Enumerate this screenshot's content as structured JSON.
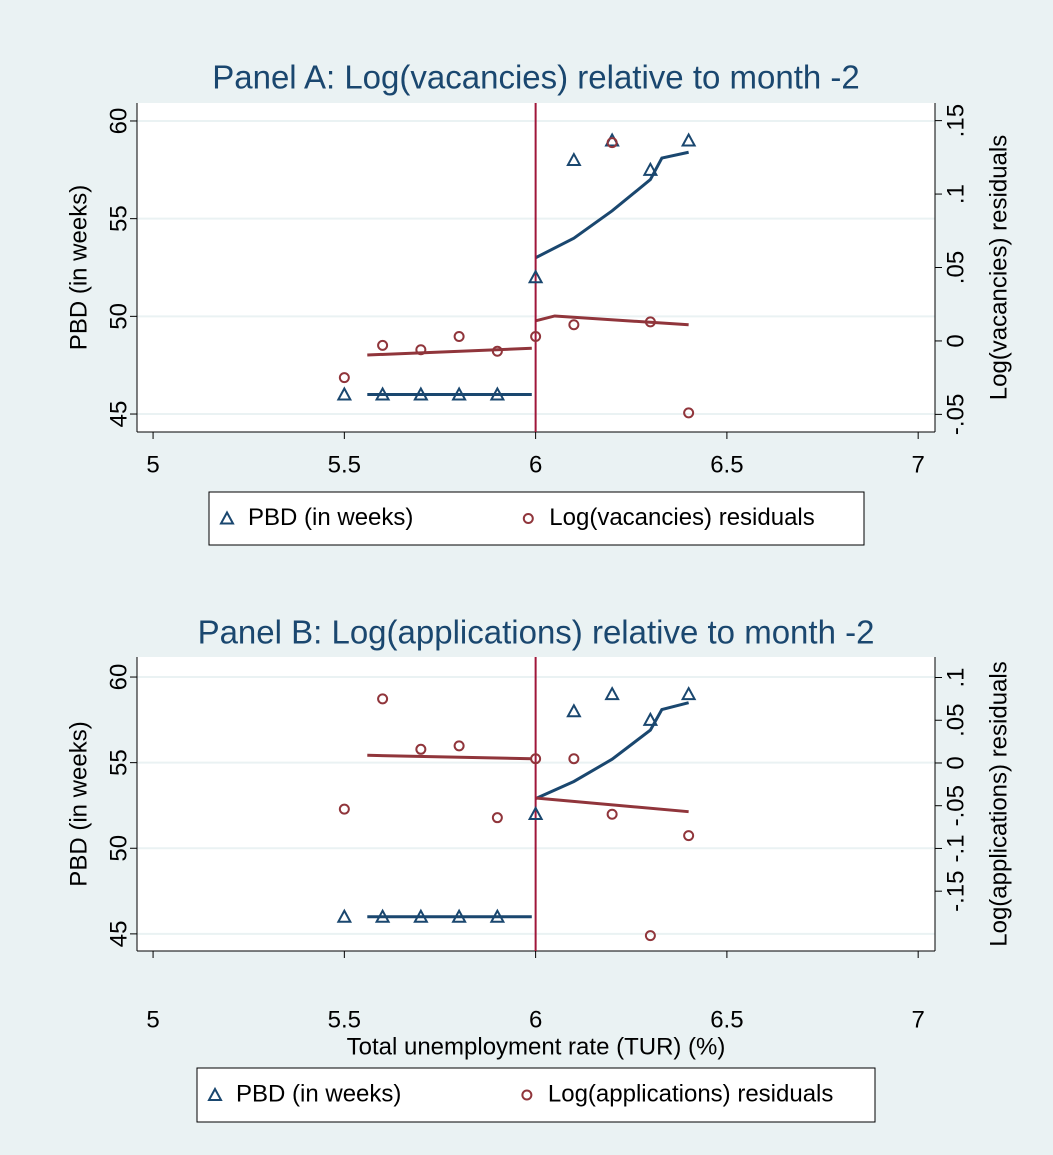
{
  "chart_data": [
    {
      "type": "scatter",
      "title": "Panel A: Log(vacancies) relative to month -2",
      "ylabel": "PBD (in weeks)",
      "y2label": "Log(vacancies) residuals",
      "xlim": [
        4.958,
        7.044
      ],
      "xticks": [
        5,
        5.5,
        6,
        6.5,
        7
      ],
      "ylim": [
        44.08,
        60.92
      ],
      "yticks": [
        45,
        50,
        55,
        60
      ],
      "y2lim": [
        -0.062,
        0.162
      ],
      "y2ticks": [
        {
          "value": -0.05,
          "label": "-.05"
        },
        0,
        {
          "value": 0.05,
          "label": ".05"
        },
        {
          "value": 0.1,
          "label": ".1"
        },
        {
          "value": 0.15,
          "label": ".15"
        }
      ],
      "vline": 6,
      "vline_color": "#a0173a",
      "grid": true,
      "legend": "bottom",
      "series": [
        {
          "name": "PBD (in weeks)",
          "color": "#1a476f",
          "marker": "triangle",
          "x": [
            5.5,
            5.6,
            5.7,
            5.8,
            5.9,
            6,
            6.1,
            6.2,
            6.3,
            6.4
          ],
          "values": [
            46,
            46,
            46,
            46,
            46,
            52,
            58,
            59,
            57.5,
            59
          ]
        },
        {
          "name": "Log(vacancies) residuals",
          "color": "#90353b",
          "marker": "circle",
          "axis": "y2",
          "x": [
            5.5,
            5.6,
            5.7,
            5.8,
            5.9,
            6,
            6.1,
            6.2,
            6.3,
            6.4
          ],
          "values": [
            -0.025,
            -0.003,
            -0.006,
            0.003,
            -0.007,
            0.003,
            0.011,
            0.135,
            0.013,
            -0.049
          ]
        },
        {
          "color": "#1a476f",
          "marker": "line",
          "x": [
            5.56,
            5.99
          ],
          "values": [
            46,
            46
          ]
        },
        {
          "color": "#1a476f",
          "marker": "line",
          "x": [
            6,
            6.1,
            6.2,
            6.3,
            6.33,
            6.4
          ],
          "values": [
            53,
            54,
            55.4,
            57,
            58.1,
            58.4
          ]
        },
        {
          "color": "#90353b",
          "marker": "line",
          "axis": "y2",
          "x": [
            5.56,
            5.99
          ],
          "values": [
            -0.0096,
            -0.005
          ]
        },
        {
          "color": "#90353b",
          "marker": "line",
          "axis": "y2",
          "x": [
            6,
            6.05,
            6.4
          ],
          "values": [
            0.0137,
            0.017,
            0.011
          ]
        }
      ]
    },
    {
      "type": "scatter",
      "title": "Panel B: Log(applications) relative to month -2",
      "ylabel": "PBD (in weeks)",
      "y2label": "Log(applications) residuals",
      "xlabel": "Total unemployment rate (TUR) (%)",
      "xlim": [
        4.958,
        7.044
      ],
      "xticks": [
        5,
        5.5,
        6,
        6.5,
        7
      ],
      "ylim": [
        44.0,
        61.17
      ],
      "yticks": [
        45,
        50,
        55,
        60
      ],
      "y2lim": [
        -0.22,
        0.124
      ],
      "y2ticks": [
        {
          "value": -0.15,
          "label": "-.15"
        },
        {
          "value": -0.1,
          "label": "-.1"
        },
        {
          "value": -0.05,
          "label": "-.05"
        },
        0,
        {
          "value": 0.05,
          "label": ".05"
        },
        {
          "value": 0.1,
          "label": ".1"
        }
      ],
      "vline": 6,
      "vline_color": "#a0173a",
      "grid": true,
      "legend": "bottom",
      "series": [
        {
          "name": "PBD (in weeks)",
          "color": "#1a476f",
          "marker": "triangle",
          "x": [
            5.5,
            5.6,
            5.7,
            5.8,
            5.9,
            6,
            6.1,
            6.2,
            6.3,
            6.4
          ],
          "values": [
            46,
            46,
            46,
            46,
            46,
            52,
            58,
            59,
            57.5,
            59
          ]
        },
        {
          "name": "Log(applications) residuals",
          "color": "#90353b",
          "marker": "circle",
          "axis": "y2",
          "x": [
            5.5,
            5.6,
            5.7,
            5.8,
            5.9,
            6,
            6.1,
            6.2,
            6.3,
            6.4
          ],
          "values": [
            -0.054,
            0.075,
            0.016,
            0.02,
            -0.064,
            0.005,
            0.005,
            -0.06,
            -0.202,
            -0.085
          ]
        },
        {
          "color": "#1a476f",
          "marker": "line",
          "x": [
            5.56,
            5.99
          ],
          "values": [
            46,
            46
          ]
        },
        {
          "color": "#1a476f",
          "marker": "line",
          "x": [
            6,
            6.1,
            6.2,
            6.3,
            6.33,
            6.4
          ],
          "values": [
            52.9,
            53.9,
            55.2,
            56.9,
            58.1,
            58.5
          ]
        },
        {
          "color": "#90353b",
          "marker": "line",
          "axis": "y2",
          "x": [
            5.56,
            5.99
          ],
          "values": [
            0.009,
            0.005
          ]
        },
        {
          "color": "#90353b",
          "marker": "line",
          "axis": "y2",
          "x": [
            6,
            6.4
          ],
          "values": [
            -0.041,
            -0.057
          ]
        }
      ]
    }
  ]
}
